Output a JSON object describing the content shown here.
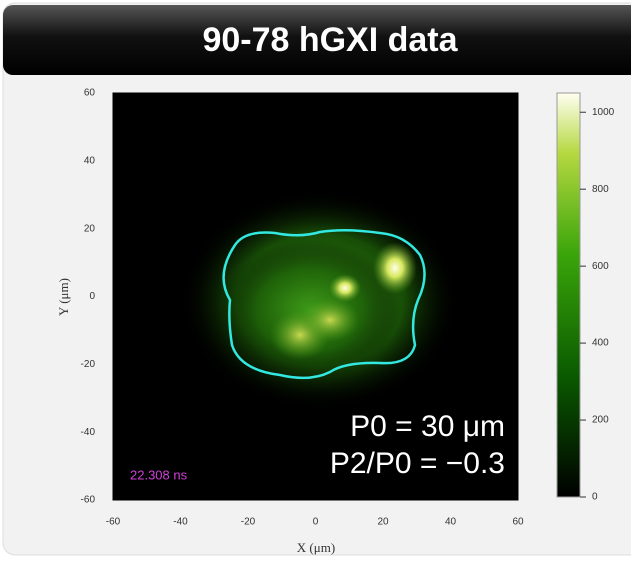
{
  "chart_data": {
    "type": "image",
    "title": "90-78 hGXI data",
    "x_label": "X (μm)",
    "y_label": "Y (μm)",
    "xlim": [
      -60,
      60
    ],
    "ylim": [
      -60,
      60
    ],
    "xticks": [
      -60,
      -40,
      -20,
      0,
      20,
      40,
      60
    ],
    "yticks": [
      -60,
      -40,
      -20,
      0,
      20,
      40,
      60
    ],
    "colorbar": {
      "lim": [
        0,
        1050
      ],
      "ticks": [
        0,
        200,
        400,
        600,
        800,
        1000
      ]
    },
    "annotations": [
      "P0 = 30 μm",
      "P2/P0 = −0.3",
      "22.308 ns"
    ]
  }
}
